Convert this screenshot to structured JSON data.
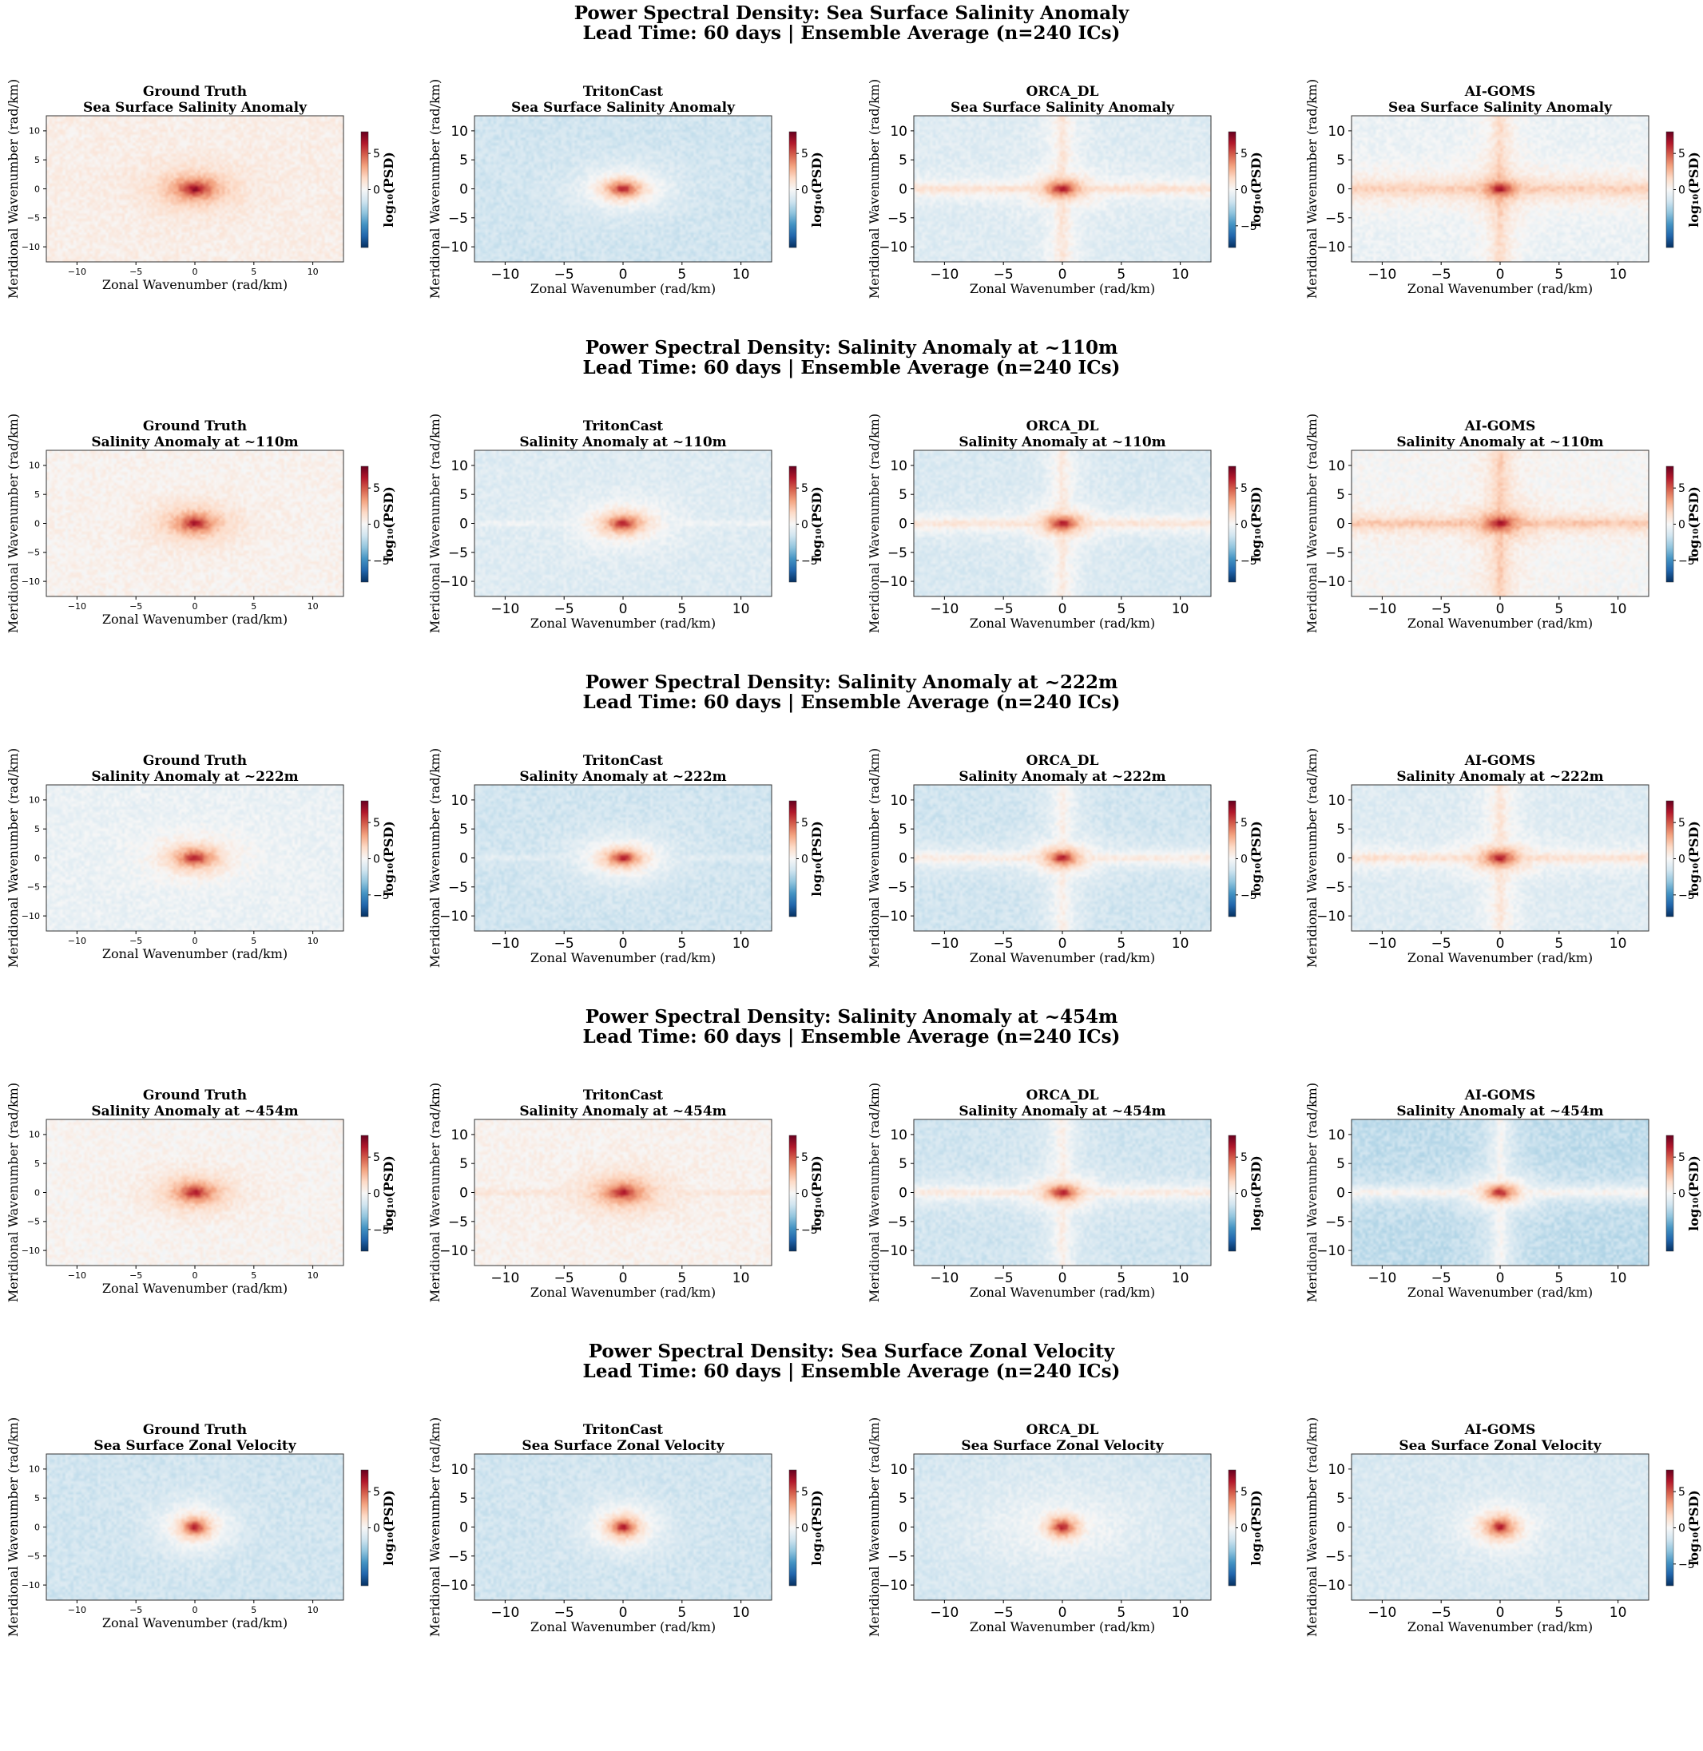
{
  "chart_data": {
    "type": "heatmap",
    "title_line2": "Lead Time: 60 days | Ensemble Average (n=240 ICs)",
    "models": [
      "Ground Truth",
      "TritonCast",
      "ORCA_DL",
      "AI-GOMS"
    ],
    "xlabel": "Zonal Wavenumber (rad/km)",
    "ylabel": "Meridional Wavenumber (rad/km)",
    "colorbar_label": "log₁₀(PSD)",
    "colormap": "RdBu_r",
    "xlim": [
      -12.6,
      12.6
    ],
    "ylim": [
      -12.6,
      12.6
    ],
    "xticks": [
      -10,
      -5,
      0,
      5,
      10
    ],
    "yticks": [
      -10,
      -5,
      0,
      5,
      10
    ],
    "rows": [
      {
        "title": "Power Spectral Density: Sea Surface Salinity Anomaly",
        "variable": "Sea Surface Salinity Anomaly",
        "panels": [
          {
            "model": "Ground Truth",
            "cb_ticks": [
              0,
              5
            ],
            "pattern": "isotropic",
            "peak": 8,
            "background": 0.5
          },
          {
            "model": "TritonCast",
            "cb_ticks": [
              0,
              5
            ],
            "pattern": "isotropic",
            "peak": 7.5,
            "background": -1.5
          },
          {
            "model": "ORCA_DL",
            "cb_ticks": [
              -5,
              0,
              5
            ],
            "pattern": "cross",
            "peak": 7.5,
            "background": -1
          },
          {
            "model": "AI-GOMS",
            "cb_ticks": [
              0,
              5
            ],
            "pattern": "cross-wide",
            "peak": 7.5,
            "background": -0.5
          }
        ]
      },
      {
        "title": "Power Spectral Density: Salinity Anomaly at ~110m",
        "variable": "Salinity Anomaly at ~110m",
        "panels": [
          {
            "model": "Ground Truth",
            "cb_ticks": [
              -5,
              0,
              5
            ],
            "pattern": "isotropic",
            "peak": 7.5,
            "background": 0.3
          },
          {
            "model": "TritonCast",
            "cb_ticks": [
              -5,
              0,
              5
            ],
            "pattern": "isotropic-line",
            "peak": 7.5,
            "background": -1
          },
          {
            "model": "ORCA_DL",
            "cb_ticks": [
              -5,
              0,
              5
            ],
            "pattern": "cross",
            "peak": 7.5,
            "background": -1.2
          },
          {
            "model": "AI-GOMS",
            "cb_ticks": [
              -5,
              0,
              5
            ],
            "pattern": "cross",
            "peak": 7.5,
            "background": 0
          }
        ]
      },
      {
        "title": "Power Spectral Density: Salinity Anomaly at ~222m",
        "variable": "Salinity Anomaly at ~222m",
        "panels": [
          {
            "model": "Ground Truth",
            "cb_ticks": [
              -5,
              0,
              5
            ],
            "pattern": "isotropic",
            "peak": 7.5,
            "background": -0.5
          },
          {
            "model": "TritonCast",
            "cb_ticks": [
              0,
              5
            ],
            "pattern": "isotropic-line",
            "peak": 7.5,
            "background": -1.5
          },
          {
            "model": "ORCA_DL",
            "cb_ticks": [
              -5,
              0,
              5
            ],
            "pattern": "cross",
            "peak": 7.5,
            "background": -1.5
          },
          {
            "model": "AI-GOMS",
            "cb_ticks": [
              -5,
              0,
              5
            ],
            "pattern": "cross",
            "peak": 7.5,
            "background": -1
          }
        ]
      },
      {
        "title": "Power Spectral Density: Salinity Anomaly at ~454m",
        "variable": "Salinity Anomaly at ~454m",
        "panels": [
          {
            "model": "Ground Truth",
            "cb_ticks": [
              -5,
              0,
              5
            ],
            "pattern": "isotropic",
            "peak": 7.5,
            "background": 0.2
          },
          {
            "model": "TritonCast",
            "cb_ticks": [
              -5,
              0,
              5
            ],
            "pattern": "isotropic-line",
            "peak": 7.5,
            "background": 0.3
          },
          {
            "model": "ORCA_DL",
            "cb_ticks": [
              0,
              5
            ],
            "pattern": "cross",
            "peak": 7.5,
            "background": -1.5
          },
          {
            "model": "AI-GOMS",
            "cb_ticks": [
              0,
              5
            ],
            "pattern": "cross",
            "peak": 7.5,
            "background": -2
          }
        ]
      },
      {
        "title": "Power Spectral Density: Sea Surface Zonal Velocity",
        "variable": "Sea Surface Zonal Velocity",
        "panels": [
          {
            "model": "Ground Truth",
            "cb_ticks": [
              0,
              5
            ],
            "pattern": "velocity",
            "peak": 7.5,
            "background": -1.5
          },
          {
            "model": "TritonCast",
            "cb_ticks": [
              0,
              5
            ],
            "pattern": "velocity",
            "peak": 7.5,
            "background": -1.5
          },
          {
            "model": "ORCA_DL",
            "cb_ticks": [
              0,
              5
            ],
            "pattern": "velocity-cross",
            "peak": 7.5,
            "background": -1.5
          },
          {
            "model": "AI-GOMS",
            "cb_ticks": [
              -5,
              0,
              5
            ],
            "pattern": "velocity",
            "peak": 7.5,
            "background": -1.2
          }
        ]
      }
    ]
  }
}
